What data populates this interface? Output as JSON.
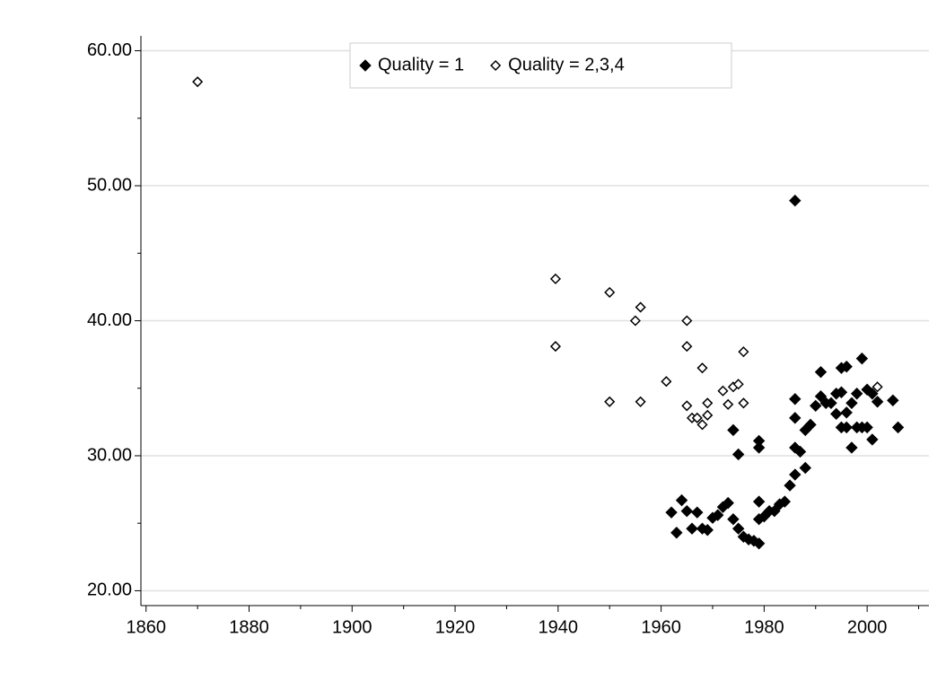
{
  "chart_data": {
    "type": "scatter",
    "xlim": [
      1859,
      2012
    ],
    "xticks": [
      1860,
      1880,
      1900,
      1920,
      1940,
      1960,
      1980,
      2000
    ],
    "xminorticks": [
      1870,
      1890,
      1910,
      1930,
      1950,
      1970,
      1990,
      2010
    ],
    "ylim": [
      18.9,
      61.1
    ],
    "yticks": [
      {
        "value": 20,
        "label": "20.00"
      },
      {
        "value": 30,
        "label": "30.00"
      },
      {
        "value": 40,
        "label": "40.00"
      },
      {
        "value": 50,
        "label": "50.00"
      },
      {
        "value": 60,
        "label": "60.00"
      }
    ],
    "yminorticks": [
      25,
      35,
      45,
      55
    ],
    "grid": true,
    "legend": "top",
    "series": [
      {
        "name": "Quality = 1",
        "color": "#000000",
        "marker": "filled-diamond",
        "x": [
          1962,
          1963,
          1964,
          1965,
          1966,
          1967,
          1968,
          1969,
          1970,
          1971,
          1972,
          1973,
          1974,
          1974,
          1975,
          1975,
          1976,
          1977,
          1978,
          1979,
          1979,
          1979,
          1979,
          1979,
          1980,
          1981,
          1982,
          1983,
          1984,
          1985,
          1986,
          1986,
          1986,
          1986,
          1986,
          1987,
          1988,
          1988,
          1989,
          1990,
          1991,
          1991,
          1992,
          1993,
          1994,
          1994,
          1995,
          1995,
          1995,
          1996,
          1996,
          1996,
          1997,
          1997,
          1998,
          1998,
          1999,
          1999,
          2000,
          2000,
          2001,
          2001,
          2002,
          2005,
          2006
        ],
        "values": [
          25.8,
          24.3,
          26.7,
          25.9,
          24.6,
          25.8,
          24.6,
          24.5,
          25.4,
          25.6,
          26.2,
          26.5,
          25.3,
          31.9,
          24.6,
          30.1,
          24.0,
          23.8,
          23.7,
          23.5,
          25.3,
          26.6,
          30.6,
          31.1,
          25.5,
          25.9,
          25.9,
          26.4,
          26.6,
          27.8,
          28.6,
          30.6,
          32.8,
          34.2,
          48.9,
          30.3,
          29.1,
          31.9,
          32.3,
          33.7,
          34.4,
          36.2,
          33.9,
          33.9,
          33.1,
          34.6,
          34.7,
          36.5,
          32.1,
          33.2,
          32.1,
          36.6,
          30.6,
          33.9,
          34.6,
          32.1,
          37.2,
          32.1,
          32.1,
          34.9,
          31.2,
          34.6,
          34.0,
          34.1,
          32.1
        ]
      },
      {
        "name": "Quality = 2,3,4",
        "color": "#000000",
        "marker": "open-diamond",
        "x": [
          1870,
          1939.5,
          1939.5,
          1950,
          1950,
          1955,
          1956,
          1956,
          1961,
          1965,
          1965,
          1965,
          1966,
          1967,
          1968,
          1968,
          1969,
          1969,
          1972,
          1973,
          1974,
          1975,
          1976,
          1976,
          2002
        ],
        "values": [
          57.7,
          43.1,
          38.1,
          42.1,
          34.0,
          40.0,
          41.0,
          34.0,
          35.5,
          40.0,
          38.1,
          33.7,
          32.8,
          32.8,
          32.3,
          36.5,
          33.0,
          33.9,
          34.8,
          33.8,
          35.1,
          35.3,
          37.7,
          33.9,
          35.1
        ]
      }
    ]
  }
}
